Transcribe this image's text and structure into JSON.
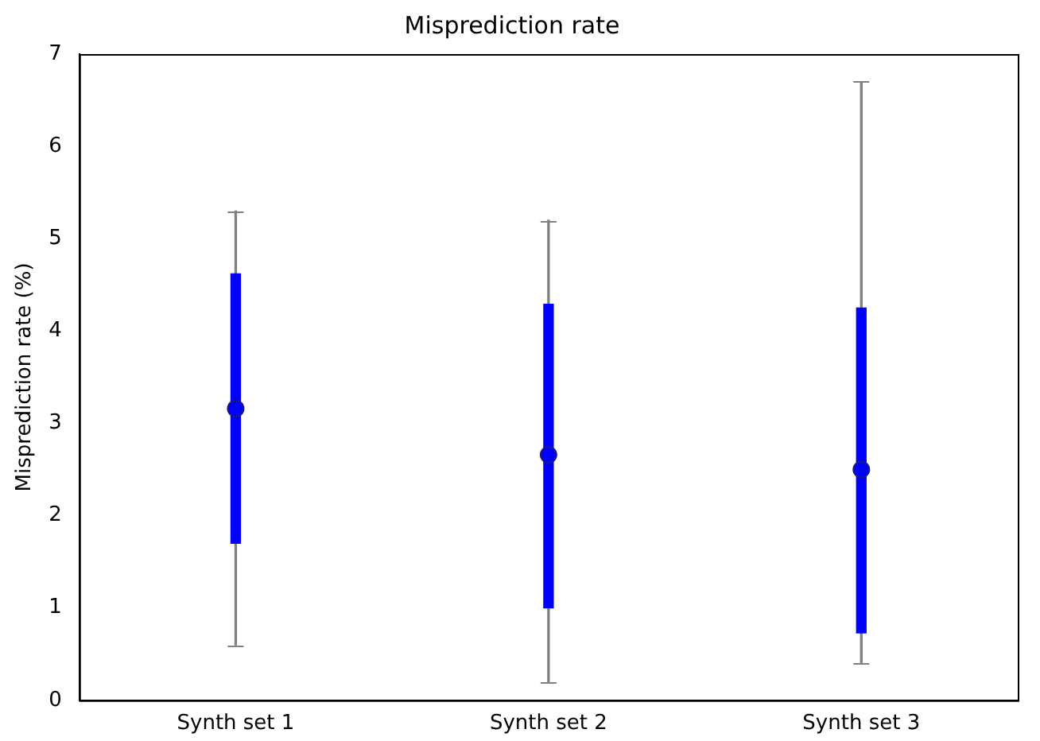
{
  "chart_data": {
    "type": "box",
    "title": "Misprediction rate",
    "ylabel": "Misprediction rate (%)",
    "categories": [
      "Synth set 1",
      "Synth set 2",
      "Synth set 3"
    ],
    "color": "#0000ff",
    "boxes": [
      {
        "low": 0.6,
        "q1": 1.7,
        "median": 3.16,
        "q3": 4.62,
        "high": 5.3
      },
      {
        "low": 0.2,
        "q1": 1.0,
        "median": 2.66,
        "q3": 4.29,
        "high": 5.2
      },
      {
        "low": 0.4,
        "q1": 0.73,
        "median": 2.5,
        "q3": 4.25,
        "high": 6.7
      }
    ],
    "ylim": [
      0,
      7
    ],
    "yticks": [
      0,
      1,
      2,
      3,
      4,
      5,
      6,
      7
    ],
    "grid": false,
    "legend": false
  }
}
